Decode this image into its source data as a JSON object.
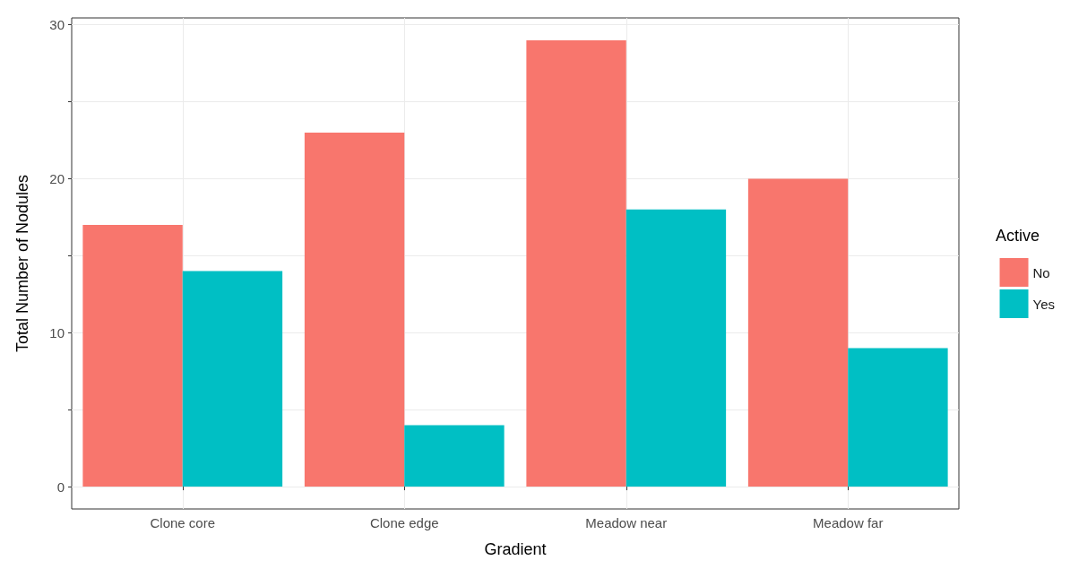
{
  "chart_data": {
    "type": "bar",
    "xlabel": "Gradient",
    "ylabel": "Total Number of Nodules",
    "legend_title": "Active",
    "categories": [
      "Clone core",
      "Clone edge",
      "Meadow near",
      "Meadow far"
    ],
    "series": [
      {
        "name": "No",
        "color": "#f8766d",
        "values": [
          17,
          23,
          29,
          20
        ]
      },
      {
        "name": "Yes",
        "color": "#00bfc4",
        "values": [
          14,
          4,
          18,
          9
        ]
      }
    ],
    "ylim": [
      -1.45,
      30.45
    ],
    "yticks": [
      0,
      {
        "value": 5,
        "label": null
      },
      10,
      {
        "value": 15,
        "label": null
      },
      20,
      {
        "value": 25,
        "label": null
      },
      30
    ],
    "grid": true,
    "legend": "right"
  }
}
